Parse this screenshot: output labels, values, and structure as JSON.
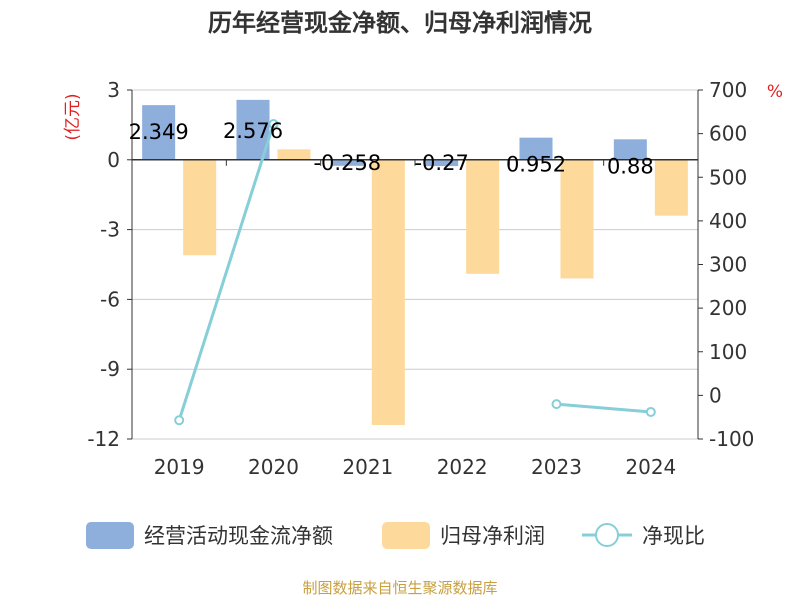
{
  "chart_data": {
    "type": "bar",
    "title": "历年经营现金净额、归母净利润情况",
    "categories": [
      "2019",
      "2020",
      "2021",
      "2022",
      "2023",
      "2024"
    ],
    "left_axis": {
      "unit": "(亿元)",
      "ylim": [
        -12,
        3
      ],
      "ticks": [
        "3",
        "0",
        "-3",
        "-6",
        "-9",
        "-12"
      ],
      "tick_values": [
        3,
        0,
        -3,
        -6,
        -9,
        -12
      ]
    },
    "right_axis": {
      "unit": "%",
      "ylim": [
        -100,
        700
      ],
      "ticks": [
        "700",
        "600",
        "500",
        "400",
        "300",
        "200",
        "100",
        "0",
        "-100"
      ],
      "tick_values": [
        700,
        600,
        500,
        400,
        300,
        200,
        100,
        0,
        -100
      ]
    },
    "series": [
      {
        "name": "经营活动现金流净额",
        "type": "bar",
        "axis": "left",
        "color": "#8eaedb",
        "values": [
          2.349,
          2.576,
          -0.258,
          -0.27,
          0.952,
          0.88
        ],
        "labels": [
          "2.349",
          "2.576",
          "-0.258",
          "-0.27",
          "0.952",
          "0.88"
        ]
      },
      {
        "name": "归母净利润",
        "type": "bar",
        "axis": "left",
        "color": "#fdd99b",
        "values": [
          -4.1,
          0.45,
          -11.4,
          -4.9,
          -5.1,
          -2.4
        ]
      },
      {
        "name": "净现比",
        "type": "line",
        "axis": "right",
        "color": "#86cfd8",
        "values": [
          -57,
          622,
          null,
          null,
          -20,
          -38
        ]
      }
    ],
    "grid": true,
    "legend_position": "bottom"
  },
  "source": "制图数据来自恒生聚源数据库"
}
